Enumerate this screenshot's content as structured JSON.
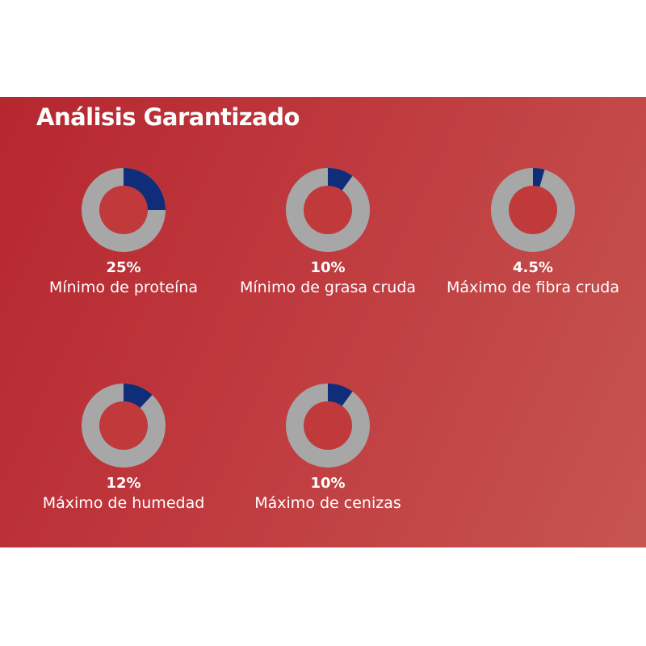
{
  "header": {
    "title": "Análisis Garantizado"
  },
  "colors": {
    "panel_background": "#bb2f35",
    "donut_track": "#a7a7a7",
    "donut_fill": "#0f2d78",
    "donut_hole": "#c0393b",
    "text": "#ffffff"
  },
  "chart_data": {
    "type": "pie",
    "variant": "donut-grid",
    "items": [
      {
        "value_text": "25%",
        "value": 25,
        "label": "Mínimo de proteína"
      },
      {
        "value_text": "10%",
        "value": 10,
        "label": "Mínimo de grasa cruda"
      },
      {
        "value_text": "4.5%",
        "value": 4.5,
        "label": "Máximo de fibra cruda"
      },
      {
        "value_text": "12%",
        "value": 12,
        "label": "Máximo de humedad"
      },
      {
        "value_text": "10%",
        "value": 10,
        "label": "Máximo de cenizas"
      }
    ]
  }
}
